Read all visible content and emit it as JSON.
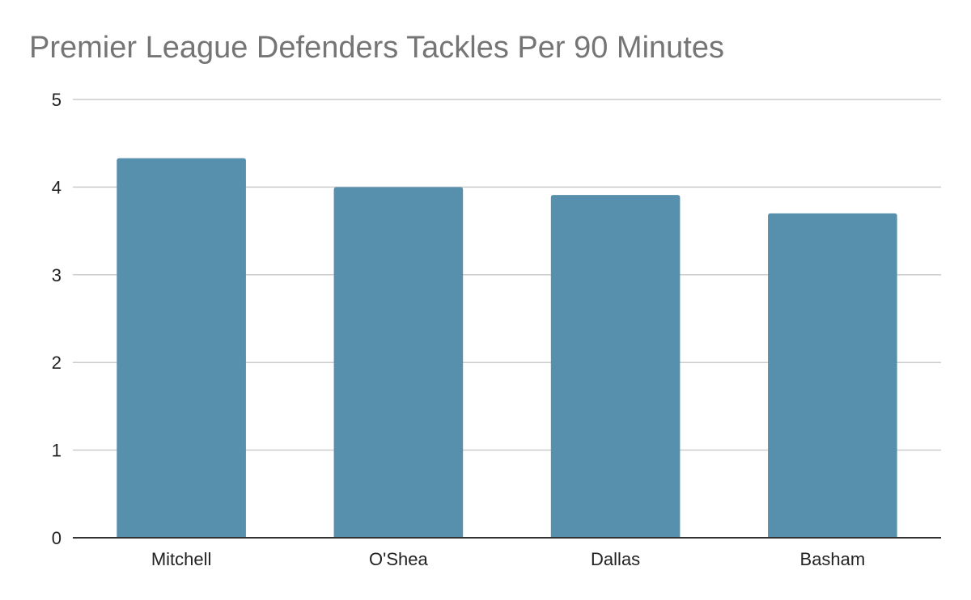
{
  "chart_data": {
    "type": "bar",
    "title": "Premier League Defenders Tackles Per 90 Minutes",
    "xlabel": "",
    "ylabel": "",
    "categories": [
      "Mitchell",
      "O'Shea",
      "Dallas",
      "Basham"
    ],
    "values": [
      4.33,
      4.0,
      3.91,
      3.7
    ],
    "ylim": [
      0,
      5
    ],
    "yticks": [
      0,
      1,
      2,
      3,
      4,
      5
    ],
    "grid": true,
    "legend": "none",
    "colors": {
      "bar": "#5790ad",
      "grid": "#cccccc",
      "axis": "#333333"
    }
  }
}
